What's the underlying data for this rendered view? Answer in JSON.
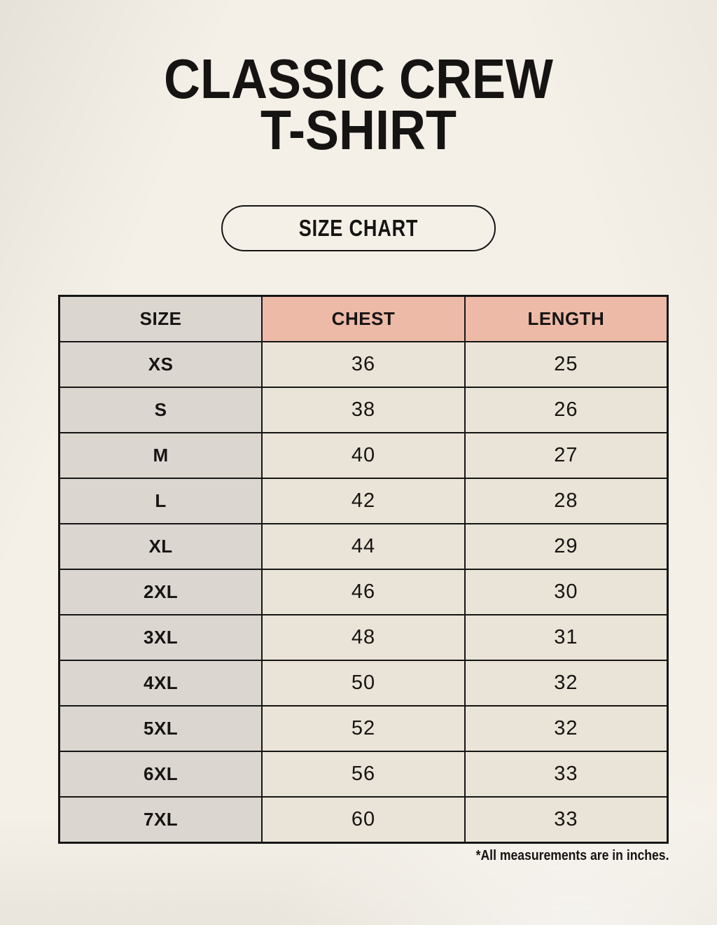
{
  "header": {
    "title_line1": "CLASSIC CREW",
    "title_line2": "T-SHIRT",
    "button_label": "SIZE CHART"
  },
  "table": {
    "columns": [
      "SIZE",
      "CHEST",
      "LENGTH"
    ],
    "rows": [
      {
        "size": "XS",
        "chest": "36",
        "length": "25"
      },
      {
        "size": "S",
        "chest": "38",
        "length": "26"
      },
      {
        "size": "M",
        "chest": "40",
        "length": "27"
      },
      {
        "size": "L",
        "chest": "42",
        "length": "28"
      },
      {
        "size": "XL",
        "chest": "44",
        "length": "29"
      },
      {
        "size": "2XL",
        "chest": "46",
        "length": "30"
      },
      {
        "size": "3XL",
        "chest": "48",
        "length": "31"
      },
      {
        "size": "4XL",
        "chest": "50",
        "length": "32"
      },
      {
        "size": "5XL",
        "chest": "52",
        "length": "32"
      },
      {
        "size": "6XL",
        "chest": "56",
        "length": "33"
      },
      {
        "size": "7XL",
        "chest": "60",
        "length": "33"
      }
    ]
  },
  "footnote": "*All measurements are in inches.",
  "colors": {
    "page_bg": "#f4f0e8",
    "accent_header": "#edbaa8",
    "size_col_bg": "#dcd6d0",
    "cell_bg": "#eae3d7",
    "border": "#161616",
    "text": "#161412"
  },
  "chart_data": {
    "type": "table",
    "title": "CLASSIC CREW T-SHIRT",
    "subtitle": "SIZE CHART",
    "columns": [
      "SIZE",
      "CHEST",
      "LENGTH"
    ],
    "units": "inches",
    "rows": [
      [
        "XS",
        36,
        25
      ],
      [
        "S",
        38,
        26
      ],
      [
        "M",
        40,
        27
      ],
      [
        "L",
        42,
        28
      ],
      [
        "XL",
        44,
        29
      ],
      [
        "2XL",
        46,
        30
      ],
      [
        "3XL",
        48,
        31
      ],
      [
        "4XL",
        50,
        32
      ],
      [
        "5XL",
        52,
        32
      ],
      [
        "6XL",
        56,
        33
      ],
      [
        "7XL",
        60,
        33
      ]
    ],
    "note": "*All measurements are in inches."
  }
}
